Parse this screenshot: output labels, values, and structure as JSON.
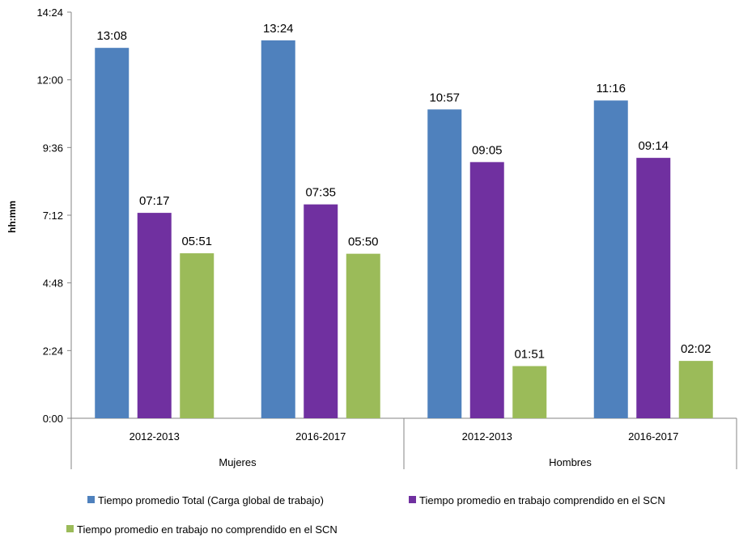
{
  "chart_data": {
    "type": "bar",
    "ylabel": "hh:mm",
    "y_unit": "minutes",
    "ylim": [
      0,
      864
    ],
    "y_ticks": [
      {
        "value": 0,
        "label": "0:00"
      },
      {
        "value": 144,
        "label": "2:24"
      },
      {
        "value": 288,
        "label": "4:48"
      },
      {
        "value": 432,
        "label": "7:12"
      },
      {
        "value": 576,
        "label": "9:36"
      },
      {
        "value": 720,
        "label": "12:00"
      },
      {
        "value": 864,
        "label": "14:24"
      }
    ],
    "groups": [
      {
        "name": "Mujeres",
        "categories": [
          "2012-2013",
          "2016-2017"
        ]
      },
      {
        "name": "Hombres",
        "categories": [
          "2012-2013",
          "2016-2017"
        ]
      }
    ],
    "categories": [
      "2012-2013",
      "2016-2017",
      "2012-2013",
      "2016-2017"
    ],
    "legend_position": "bottom",
    "series": [
      {
        "name": "Tiempo promedio Total (Carga global de trabajo)",
        "color": "#4F81BD",
        "values": [
          788,
          804,
          657,
          676
        ],
        "labels": [
          "13:08",
          "13:24",
          "10:57",
          "11:16"
        ]
      },
      {
        "name": "Tiempo promedio en trabajo comprendido en el SCN",
        "color": "#7030A0",
        "values": [
          437,
          455,
          545,
          554
        ],
        "labels": [
          "07:17",
          "07:35",
          "09:05",
          "09:14"
        ]
      },
      {
        "name": "Tiempo promedio en trabajo no comprendido en el SCN",
        "color": "#9BBB59",
        "values": [
          351,
          350,
          111,
          122
        ],
        "labels": [
          "05:51",
          "05:50",
          "01:51",
          "02:02"
        ]
      }
    ]
  }
}
